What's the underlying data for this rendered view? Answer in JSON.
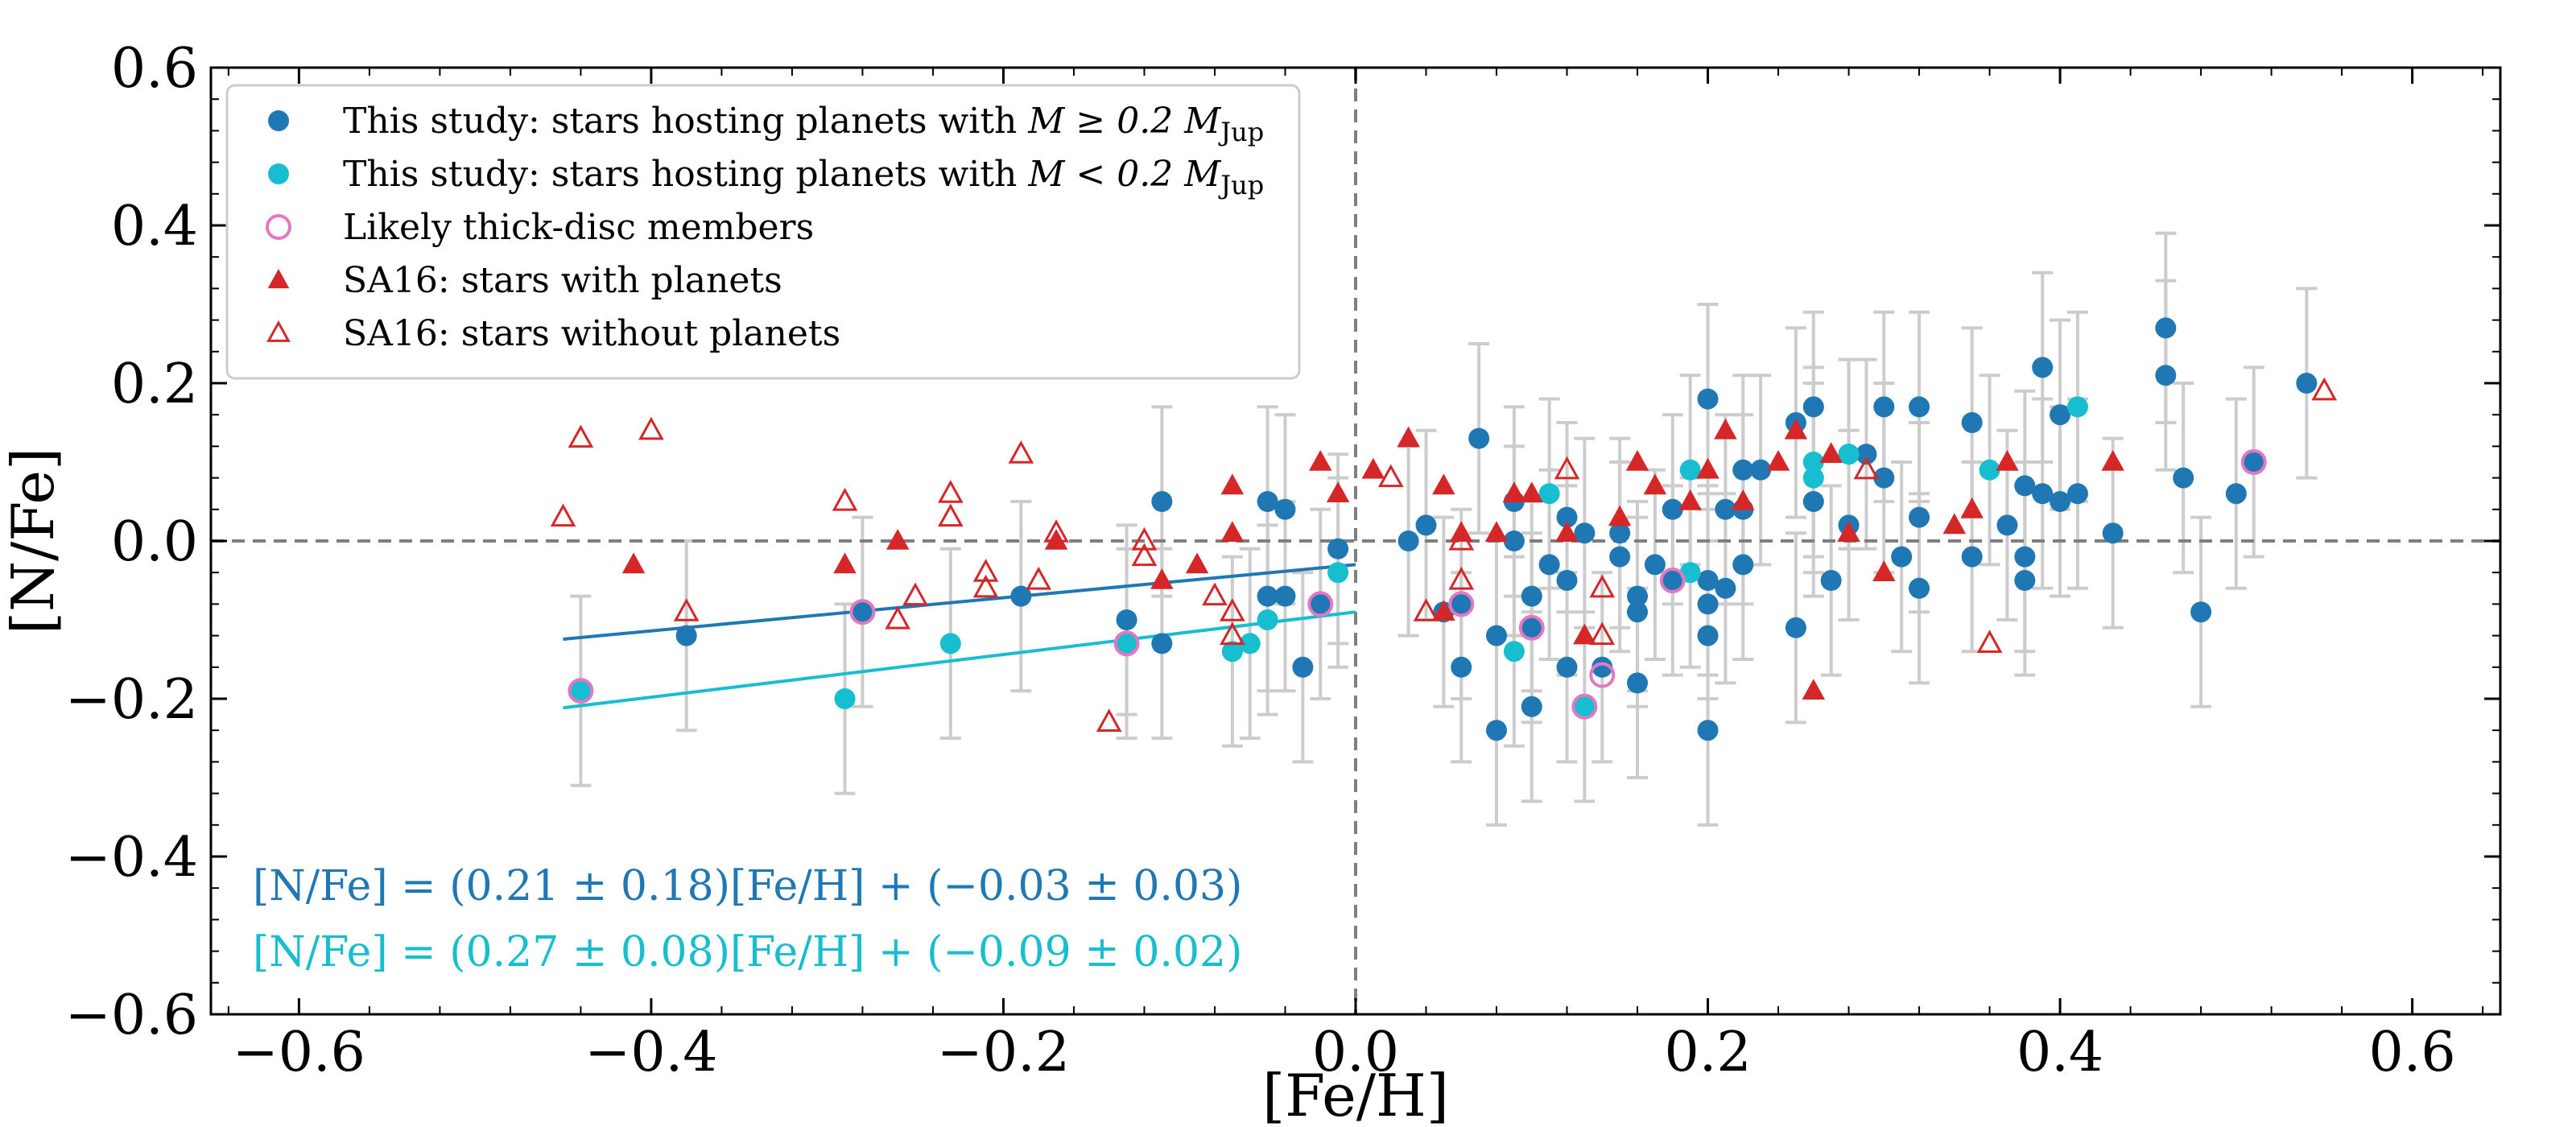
{
  "chart_data": {
    "type": "scatter",
    "xlabel": "[Fe/H]",
    "ylabel": "[N/Fe]",
    "xlim": [
      -0.65,
      0.65
    ],
    "ylim": [
      -0.6,
      0.6
    ],
    "xticks": [
      -0.6,
      -0.4,
      -0.2,
      0.0,
      0.2,
      0.4,
      0.6
    ],
    "xtick_labels": [
      "−0.6",
      "−0.4",
      "−0.2",
      "0.0",
      "0.2",
      "0.4",
      "0.6"
    ],
    "yticks": [
      -0.6,
      -0.4,
      -0.2,
      0.0,
      0.2,
      0.4,
      0.6
    ],
    "ytick_labels": [
      "−0.6",
      "−0.4",
      "−0.2",
      "0.0",
      "0.2",
      "0.4",
      "0.6"
    ],
    "reference_lines": {
      "x": 0.0,
      "y": 0.0
    },
    "colors": {
      "massive": "#1f77b4",
      "low_mass": "#17becf",
      "thick_disc": "#e377c2",
      "sa16": "#d62728",
      "errorbar": "#cccccc",
      "refline": "#7f7f7f"
    },
    "legend": {
      "placement": "top-left",
      "entries": [
        {
          "key": "massive",
          "marker": "filled-circle",
          "label": "This study: stars hosting planets with M ≥  0.2 M_Jup",
          "text_prefix": "This study: stars hosting planets with ",
          "math": "M ≥  0.2 M",
          "sub": "Jup"
        },
        {
          "key": "low_mass",
          "marker": "filled-circle",
          "label": "This study: stars hosting planets with M < 0.2 M_Jup",
          "text_prefix": "This study: stars hosting planets with ",
          "math": "M < 0.2 M",
          "sub": "Jup"
        },
        {
          "key": "thick_disc",
          "marker": "open-circle",
          "label": "Likely thick-disc members"
        },
        {
          "key": "sa16_with",
          "marker": "filled-triangle",
          "label": "SA16: stars with planets"
        },
        {
          "key": "sa16_without",
          "marker": "open-triangle",
          "label": "SA16: stars without planets"
        }
      ]
    },
    "fits": [
      {
        "series": "massive",
        "slope": 0.21,
        "intercept": -0.03,
        "x_range": [
          -0.45,
          0.0
        ],
        "label": "[N/Fe] = (0.21 ± 0.18)[Fe/H] + (−0.03 ± 0.03)"
      },
      {
        "series": "low_mass",
        "slope": 0.27,
        "intercept": -0.09,
        "x_range": [
          -0.45,
          0.0
        ],
        "label": "[N/Fe] = (0.27 ± 0.08)[Fe/H] + (−0.09 ± 0.02)"
      }
    ],
    "series": [
      {
        "name": "This study: stars hosting planets with M ≥ 0.2 M_Jup",
        "key": "massive",
        "points": [
          {
            "x": -0.38,
            "y": -0.12,
            "err": 0.12
          },
          {
            "x": -0.28,
            "y": -0.09,
            "err": 0.12
          },
          {
            "x": -0.19,
            "y": -0.07,
            "err": 0.12
          },
          {
            "x": -0.13,
            "y": -0.1,
            "err": 0.12
          },
          {
            "x": -0.11,
            "y": 0.05,
            "err": 0.12
          },
          {
            "x": -0.11,
            "y": -0.13,
            "err": 0.12
          },
          {
            "x": -0.05,
            "y": 0.05,
            "err": 0.12
          },
          {
            "x": -0.05,
            "y": -0.07,
            "err": 0.12
          },
          {
            "x": -0.04,
            "y": 0.04,
            "err": 0.12
          },
          {
            "x": -0.04,
            "y": -0.07,
            "err": 0.12
          },
          {
            "x": -0.03,
            "y": -0.16,
            "err": 0.12
          },
          {
            "x": -0.02,
            "y": -0.08,
            "err": 0.12
          },
          {
            "x": -0.01,
            "y": -0.01,
            "err": 0.12
          },
          {
            "x": 0.03,
            "y": 0.0,
            "err": 0.12
          },
          {
            "x": 0.04,
            "y": 0.02,
            "err": 0.12
          },
          {
            "x": 0.05,
            "y": -0.09,
            "err": 0.12
          },
          {
            "x": 0.06,
            "y": -0.16,
            "err": 0.12
          },
          {
            "x": 0.06,
            "y": -0.08,
            "err": 0.12
          },
          {
            "x": 0.07,
            "y": 0.13,
            "err": 0.12
          },
          {
            "x": 0.08,
            "y": -0.12,
            "err": 0.12
          },
          {
            "x": 0.08,
            "y": -0.24,
            "err": 0.12
          },
          {
            "x": 0.09,
            "y": 0.05,
            "err": 0.12
          },
          {
            "x": 0.09,
            "y": 0.0,
            "err": 0.12
          },
          {
            "x": 0.1,
            "y": -0.07,
            "err": 0.12
          },
          {
            "x": 0.1,
            "y": -0.11,
            "err": 0.12
          },
          {
            "x": 0.1,
            "y": -0.21,
            "err": 0.12
          },
          {
            "x": 0.11,
            "y": -0.03,
            "err": 0.12
          },
          {
            "x": 0.12,
            "y": 0.03,
            "err": 0.12
          },
          {
            "x": 0.12,
            "y": -0.05,
            "err": 0.12
          },
          {
            "x": 0.12,
            "y": -0.16,
            "err": 0.12
          },
          {
            "x": 0.13,
            "y": 0.01,
            "err": 0.12
          },
          {
            "x": 0.14,
            "y": -0.16,
            "err": 0.12
          },
          {
            "x": 0.15,
            "y": -0.02,
            "err": 0.12
          },
          {
            "x": 0.15,
            "y": 0.01,
            "err": 0.12
          },
          {
            "x": 0.16,
            "y": -0.07,
            "err": 0.12
          },
          {
            "x": 0.16,
            "y": -0.09,
            "err": 0.12
          },
          {
            "x": 0.16,
            "y": -0.18,
            "err": 0.12
          },
          {
            "x": 0.17,
            "y": -0.03,
            "err": 0.12
          },
          {
            "x": 0.18,
            "y": 0.04,
            "err": 0.12
          },
          {
            "x": 0.18,
            "y": -0.05,
            "err": 0.12
          },
          {
            "x": 0.2,
            "y": 0.18,
            "err": 0.12
          },
          {
            "x": 0.2,
            "y": -0.05,
            "err": 0.12
          },
          {
            "x": 0.2,
            "y": -0.08,
            "err": 0.12
          },
          {
            "x": 0.2,
            "y": -0.12,
            "err": 0.12
          },
          {
            "x": 0.2,
            "y": -0.24,
            "err": 0.12
          },
          {
            "x": 0.21,
            "y": 0.04,
            "err": 0.12
          },
          {
            "x": 0.21,
            "y": -0.06,
            "err": 0.12
          },
          {
            "x": 0.22,
            "y": 0.09,
            "err": 0.12
          },
          {
            "x": 0.22,
            "y": 0.04,
            "err": 0.12
          },
          {
            "x": 0.22,
            "y": -0.03,
            "err": 0.12
          },
          {
            "x": 0.23,
            "y": 0.09,
            "err": 0.12
          },
          {
            "x": 0.25,
            "y": 0.15,
            "err": 0.12
          },
          {
            "x": 0.25,
            "y": -0.11,
            "err": 0.12
          },
          {
            "x": 0.26,
            "y": 0.17,
            "err": 0.12
          },
          {
            "x": 0.26,
            "y": 0.05,
            "err": 0.12
          },
          {
            "x": 0.27,
            "y": -0.05,
            "err": 0.12
          },
          {
            "x": 0.28,
            "y": 0.11,
            "err": 0.12
          },
          {
            "x": 0.28,
            "y": 0.02,
            "err": 0.12
          },
          {
            "x": 0.29,
            "y": 0.11,
            "err": 0.12
          },
          {
            "x": 0.3,
            "y": 0.17,
            "err": 0.12
          },
          {
            "x": 0.3,
            "y": 0.08,
            "err": 0.12
          },
          {
            "x": 0.31,
            "y": -0.02,
            "err": 0.12
          },
          {
            "x": 0.32,
            "y": 0.17,
            "err": 0.12
          },
          {
            "x": 0.32,
            "y": 0.03,
            "err": 0.12
          },
          {
            "x": 0.32,
            "y": -0.06,
            "err": 0.12
          },
          {
            "x": 0.35,
            "y": 0.15,
            "err": 0.12
          },
          {
            "x": 0.35,
            "y": -0.02,
            "err": 0.12
          },
          {
            "x": 0.37,
            "y": 0.02,
            "err": 0.12
          },
          {
            "x": 0.38,
            "y": 0.07,
            "err": 0.12
          },
          {
            "x": 0.38,
            "y": -0.02,
            "err": 0.12
          },
          {
            "x": 0.38,
            "y": -0.05,
            "err": 0.12
          },
          {
            "x": 0.39,
            "y": 0.22,
            "err": 0.12
          },
          {
            "x": 0.39,
            "y": 0.06,
            "err": 0.12
          },
          {
            "x": 0.4,
            "y": 0.16,
            "err": 0.12
          },
          {
            "x": 0.4,
            "y": 0.05,
            "err": 0.12
          },
          {
            "x": 0.41,
            "y": 0.06,
            "err": 0.12
          },
          {
            "x": 0.43,
            "y": 0.01,
            "err": 0.12
          },
          {
            "x": 0.46,
            "y": 0.27,
            "err": 0.12
          },
          {
            "x": 0.46,
            "y": 0.21,
            "err": 0.12
          },
          {
            "x": 0.47,
            "y": 0.08,
            "err": 0.12
          },
          {
            "x": 0.48,
            "y": -0.09,
            "err": 0.12
          },
          {
            "x": 0.5,
            "y": 0.06,
            "err": 0.12
          },
          {
            "x": 0.51,
            "y": 0.1,
            "err": 0.12
          },
          {
            "x": 0.54,
            "y": 0.2,
            "err": 0.12
          }
        ]
      },
      {
        "name": "This study: stars hosting planets with M < 0.2 M_Jup",
        "key": "low_mass",
        "points": [
          {
            "x": -0.44,
            "y": -0.19,
            "err": 0.12
          },
          {
            "x": -0.29,
            "y": -0.2,
            "err": 0.12
          },
          {
            "x": -0.23,
            "y": -0.13,
            "err": 0.12
          },
          {
            "x": -0.13,
            "y": -0.13,
            "err": 0.12
          },
          {
            "x": -0.07,
            "y": -0.14,
            "err": 0.12
          },
          {
            "x": -0.06,
            "y": -0.13,
            "err": 0.12
          },
          {
            "x": -0.05,
            "y": -0.1,
            "err": 0.12
          },
          {
            "x": -0.01,
            "y": -0.04,
            "err": 0.12
          },
          {
            "x": 0.09,
            "y": -0.14,
            "err": 0.12
          },
          {
            "x": 0.11,
            "y": 0.06,
            "err": 0.12
          },
          {
            "x": 0.13,
            "y": -0.21,
            "err": 0.12
          },
          {
            "x": 0.19,
            "y": 0.09,
            "err": 0.12
          },
          {
            "x": 0.19,
            "y": -0.04,
            "err": 0.12
          },
          {
            "x": 0.26,
            "y": 0.1,
            "err": 0.12
          },
          {
            "x": 0.26,
            "y": 0.08,
            "err": 0.12
          },
          {
            "x": 0.28,
            "y": 0.11,
            "err": 0.12
          },
          {
            "x": 0.36,
            "y": 0.09,
            "err": 0.12
          },
          {
            "x": 0.41,
            "y": 0.17,
            "err": 0.12
          }
        ]
      },
      {
        "name": "Likely thick-disc members",
        "key": "thick_disc",
        "points": [
          {
            "x": -0.44,
            "y": -0.19
          },
          {
            "x": -0.28,
            "y": -0.09
          },
          {
            "x": -0.13,
            "y": -0.13
          },
          {
            "x": -0.02,
            "y": -0.08
          },
          {
            "x": 0.06,
            "y": -0.08
          },
          {
            "x": 0.1,
            "y": -0.11
          },
          {
            "x": 0.13,
            "y": -0.21
          },
          {
            "x": 0.14,
            "y": -0.17
          },
          {
            "x": 0.18,
            "y": -0.05
          },
          {
            "x": 0.51,
            "y": 0.1
          }
        ]
      },
      {
        "name": "SA16: stars with planets",
        "key": "sa16_with",
        "points": [
          {
            "x": -0.41,
            "y": -0.03
          },
          {
            "x": -0.29,
            "y": -0.03
          },
          {
            "x": -0.26,
            "y": 0.0
          },
          {
            "x": -0.17,
            "y": 0.0
          },
          {
            "x": -0.11,
            "y": -0.05
          },
          {
            "x": -0.09,
            "y": -0.03
          },
          {
            "x": -0.07,
            "y": 0.07
          },
          {
            "x": -0.07,
            "y": 0.01
          },
          {
            "x": -0.02,
            "y": 0.1
          },
          {
            "x": -0.01,
            "y": 0.06
          },
          {
            "x": 0.01,
            "y": 0.09
          },
          {
            "x": 0.03,
            "y": 0.13
          },
          {
            "x": 0.05,
            "y": 0.07
          },
          {
            "x": 0.05,
            "y": -0.09
          },
          {
            "x": 0.06,
            "y": 0.01
          },
          {
            "x": 0.08,
            "y": 0.01
          },
          {
            "x": 0.09,
            "y": 0.06
          },
          {
            "x": 0.1,
            "y": 0.06
          },
          {
            "x": 0.12,
            "y": 0.01
          },
          {
            "x": 0.13,
            "y": -0.12
          },
          {
            "x": 0.15,
            "y": 0.03
          },
          {
            "x": 0.16,
            "y": 0.1
          },
          {
            "x": 0.17,
            "y": 0.07
          },
          {
            "x": 0.19,
            "y": 0.05
          },
          {
            "x": 0.2,
            "y": 0.09
          },
          {
            "x": 0.21,
            "y": 0.14
          },
          {
            "x": 0.22,
            "y": 0.05
          },
          {
            "x": 0.24,
            "y": 0.1
          },
          {
            "x": 0.25,
            "y": 0.14
          },
          {
            "x": 0.26,
            "y": -0.19
          },
          {
            "x": 0.27,
            "y": 0.11
          },
          {
            "x": 0.28,
            "y": 0.01
          },
          {
            "x": 0.3,
            "y": -0.04
          },
          {
            "x": 0.34,
            "y": 0.02
          },
          {
            "x": 0.35,
            "y": 0.04
          },
          {
            "x": 0.37,
            "y": 0.1
          },
          {
            "x": 0.43,
            "y": 0.1
          }
        ]
      },
      {
        "name": "SA16: stars without planets",
        "key": "sa16_without",
        "points": [
          {
            "x": -0.45,
            "y": 0.03
          },
          {
            "x": -0.44,
            "y": 0.13
          },
          {
            "x": -0.4,
            "y": 0.14
          },
          {
            "x": -0.38,
            "y": -0.09
          },
          {
            "x": -0.29,
            "y": 0.05
          },
          {
            "x": -0.26,
            "y": -0.1
          },
          {
            "x": -0.25,
            "y": -0.07
          },
          {
            "x": -0.23,
            "y": 0.06
          },
          {
            "x": -0.23,
            "y": 0.03
          },
          {
            "x": -0.21,
            "y": -0.04
          },
          {
            "x": -0.21,
            "y": -0.06
          },
          {
            "x": -0.19,
            "y": 0.11
          },
          {
            "x": -0.18,
            "y": -0.05
          },
          {
            "x": -0.17,
            "y": 0.01
          },
          {
            "x": -0.14,
            "y": -0.23
          },
          {
            "x": -0.12,
            "y": 0.0
          },
          {
            "x": -0.12,
            "y": -0.02
          },
          {
            "x": -0.08,
            "y": -0.07
          },
          {
            "x": -0.07,
            "y": -0.09
          },
          {
            "x": -0.07,
            "y": -0.12
          },
          {
            "x": 0.02,
            "y": 0.08
          },
          {
            "x": 0.04,
            "y": -0.09
          },
          {
            "x": 0.06,
            "y": -0.05
          },
          {
            "x": 0.06,
            "y": 0.0
          },
          {
            "x": 0.12,
            "y": 0.09
          },
          {
            "x": 0.14,
            "y": -0.06
          },
          {
            "x": 0.14,
            "y": -0.12
          },
          {
            "x": 0.29,
            "y": 0.09
          },
          {
            "x": 0.36,
            "y": -0.13
          },
          {
            "x": 0.55,
            "y": 0.19
          }
        ]
      }
    ]
  }
}
